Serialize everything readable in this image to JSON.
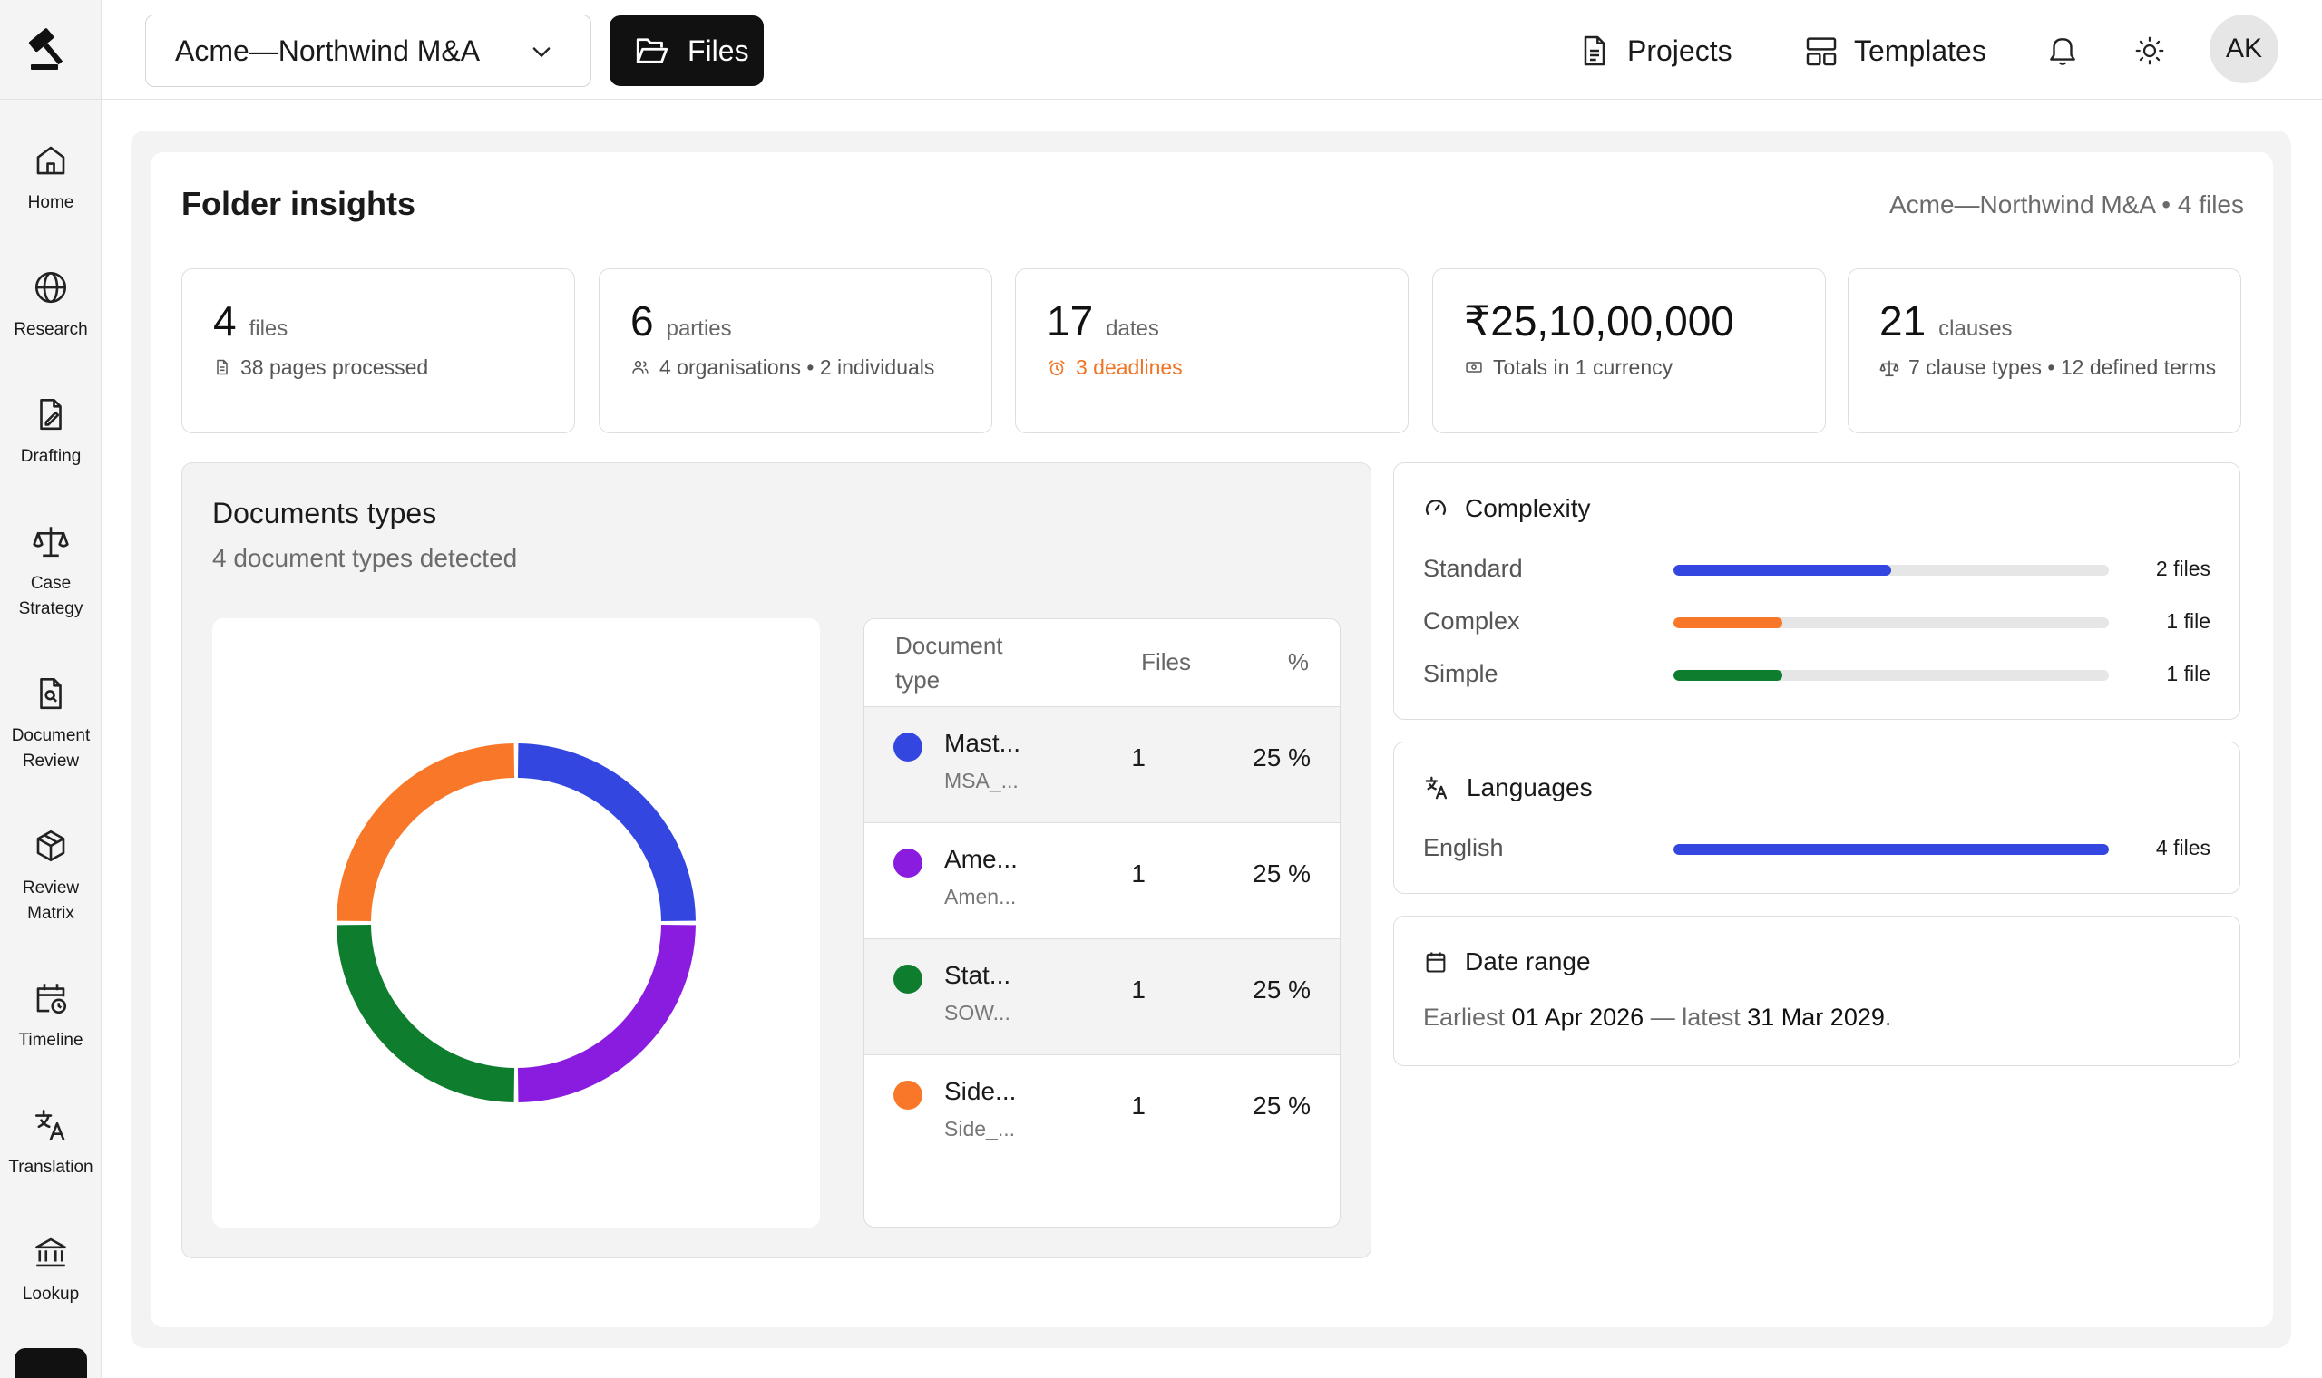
{
  "sidebar": {
    "items": [
      {
        "label": "Home"
      },
      {
        "label": "Research"
      },
      {
        "label": "Drafting"
      },
      {
        "label": "Case\nStrategy"
      },
      {
        "label": "Document\nReview"
      },
      {
        "label": "Review\nMatrix"
      },
      {
        "label": "Timeline"
      },
      {
        "label": "Translation"
      },
      {
        "label": "Lookup"
      }
    ]
  },
  "topbar": {
    "workspace": "Acme—Northwind M&A",
    "files_label": "Files",
    "projects_label": "Projects",
    "templates_label": "Templates",
    "avatar_initials": "AK"
  },
  "insights": {
    "title": "Folder insights",
    "meta": "Acme—Northwind M&A • 4 files"
  },
  "stats": [
    {
      "value": "4",
      "unit": "files",
      "sub": "38 pages processed",
      "icon": "document-icon"
    },
    {
      "value": "6",
      "unit": "parties",
      "sub": "4 organisations • 2 individuals",
      "icon": "users-icon"
    },
    {
      "value": "17",
      "unit": "dates",
      "sub": "3 deadlines",
      "icon": "alarm-icon"
    },
    {
      "value": "₹25,10,00,000",
      "unit": "",
      "sub": "Totals in 1 currency",
      "icon": "banknote-icon"
    },
    {
      "value": "21",
      "unit": "clauses",
      "sub": "7 clause types • 12 defined terms",
      "icon": "scale-icon"
    }
  ],
  "doc_types": {
    "title": "Documents types",
    "subtitle": "4 document types detected",
    "headers": {
      "type": "Document type",
      "files": "Files",
      "pct": "%"
    },
    "rows": [
      {
        "name": "Mast...",
        "file": "MSA_...",
        "count": "1",
        "pct": "25 %",
        "color": "#3346e0",
        "share": 25
      },
      {
        "name": "Ame...",
        "file": "Amen...",
        "count": "1",
        "pct": "25 %",
        "color": "#8a1ce0",
        "share": 25
      },
      {
        "name": "Stat...",
        "file": "SOW...",
        "count": "1",
        "pct": "25 %",
        "color": "#0f7d2e",
        "share": 25
      },
      {
        "name": "Side...",
        "file": "Side_...",
        "count": "1",
        "pct": "25 %",
        "color": "#f97728",
        "share": 25
      }
    ]
  },
  "chart_data": {
    "type": "pie",
    "categories": [
      "Mast...",
      "Ame...",
      "Stat...",
      "Side..."
    ],
    "values": [
      25,
      25,
      25,
      25
    ],
    "title": "Documents types"
  },
  "complexity": {
    "title": "Complexity",
    "rows": [
      {
        "label": "Standard",
        "value": "2 files",
        "fraction": 0.5,
        "color": "#3346e0"
      },
      {
        "label": "Complex",
        "value": "1 file",
        "fraction": 0.25,
        "color": "#f97728"
      },
      {
        "label": "Simple",
        "value": "1 file",
        "fraction": 0.25,
        "color": "#0f7d2e"
      }
    ]
  },
  "languages": {
    "title": "Languages",
    "rows": [
      {
        "label": "English",
        "value": "4 files",
        "fraction": 1.0,
        "color": "#3346e0"
      }
    ]
  },
  "date_range": {
    "title": "Date range",
    "earliest_label": "Earliest",
    "earliest": "01 Apr 2026",
    "separator": "— latest",
    "latest": "31 Mar 2029",
    "end": "."
  }
}
